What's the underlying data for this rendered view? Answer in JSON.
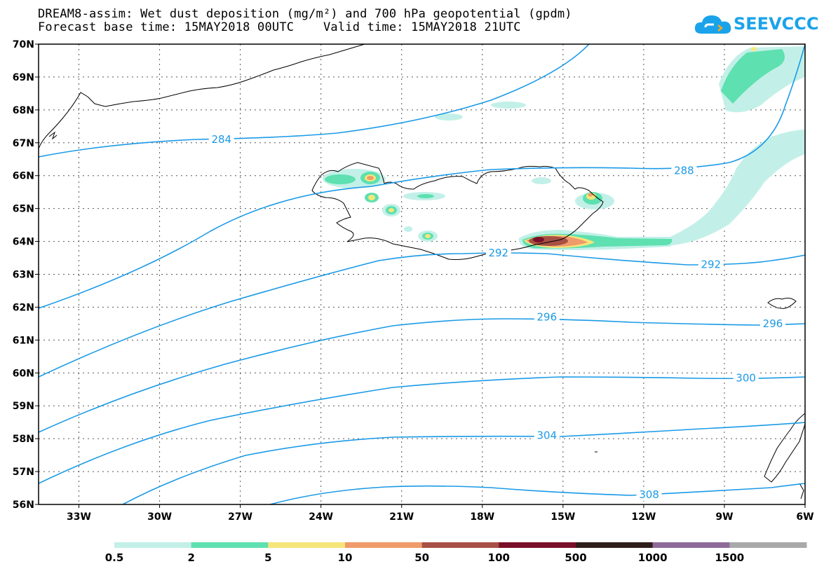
{
  "title_line1": "DREAM8-assim: Wet dust deposition (mg/m²) and 700 hPa geopotential (gpdm)",
  "title_line2": "Forecast base time: 15MAY2018 00UTC    Valid time: 15MAY2018 21UTC",
  "logo_text": "SEEVCCC",
  "map": {
    "lat_range": [
      56,
      70
    ],
    "lon_range": [
      -34.5,
      -6
    ],
    "lat_labels": [
      "70N",
      "69N",
      "68N",
      "67N",
      "66N",
      "65N",
      "64N",
      "63N",
      "62N",
      "61N",
      "60N",
      "59N",
      "58N",
      "57N",
      "56N"
    ],
    "lat_values": [
      70,
      69,
      68,
      67,
      66,
      65,
      64,
      63,
      62,
      61,
      60,
      59,
      58,
      57,
      56
    ],
    "lon_labels": [
      "33W",
      "30W",
      "27W",
      "24W",
      "21W",
      "18W",
      "15W",
      "12W",
      "9W",
      "6W"
    ],
    "lon_values": [
      -33,
      -30,
      -27,
      -24,
      -21,
      -18,
      -15,
      -12,
      -9,
      -6
    ],
    "contour_color": "#1a9ae6",
    "contour_labels": [
      {
        "text": "284",
        "lon": -27.7,
        "lat": 67.1
      },
      {
        "text": "288",
        "lon": -10.5,
        "lat": 66.15
      },
      {
        "text": "292",
        "lon": -17.4,
        "lat": 63.65
      },
      {
        "text": "292",
        "lon": -9.5,
        "lat": 63.3
      },
      {
        "text": "296",
        "lon": -15.6,
        "lat": 61.7
      },
      {
        "text": "296",
        "lon": -7.2,
        "lat": 61.5
      },
      {
        "text": "300",
        "lon": -8.2,
        "lat": 59.85
      },
      {
        "text": "304",
        "lon": -15.6,
        "lat": 58.1
      },
      {
        "text": "308",
        "lon": -11.8,
        "lat": 56.3
      }
    ]
  },
  "legend": {
    "labels": [
      "0.5",
      "2",
      "5",
      "10",
      "50",
      "100",
      "500",
      "1000",
      "1500"
    ],
    "colors": [
      "#c2f0e8",
      "#5ee0b0",
      "#f6e67a",
      "#ef9b6a",
      "#a85045",
      "#7a0f2a",
      "#2e1e1a",
      "#8e6a9a",
      "#a9a9a9"
    ]
  }
}
